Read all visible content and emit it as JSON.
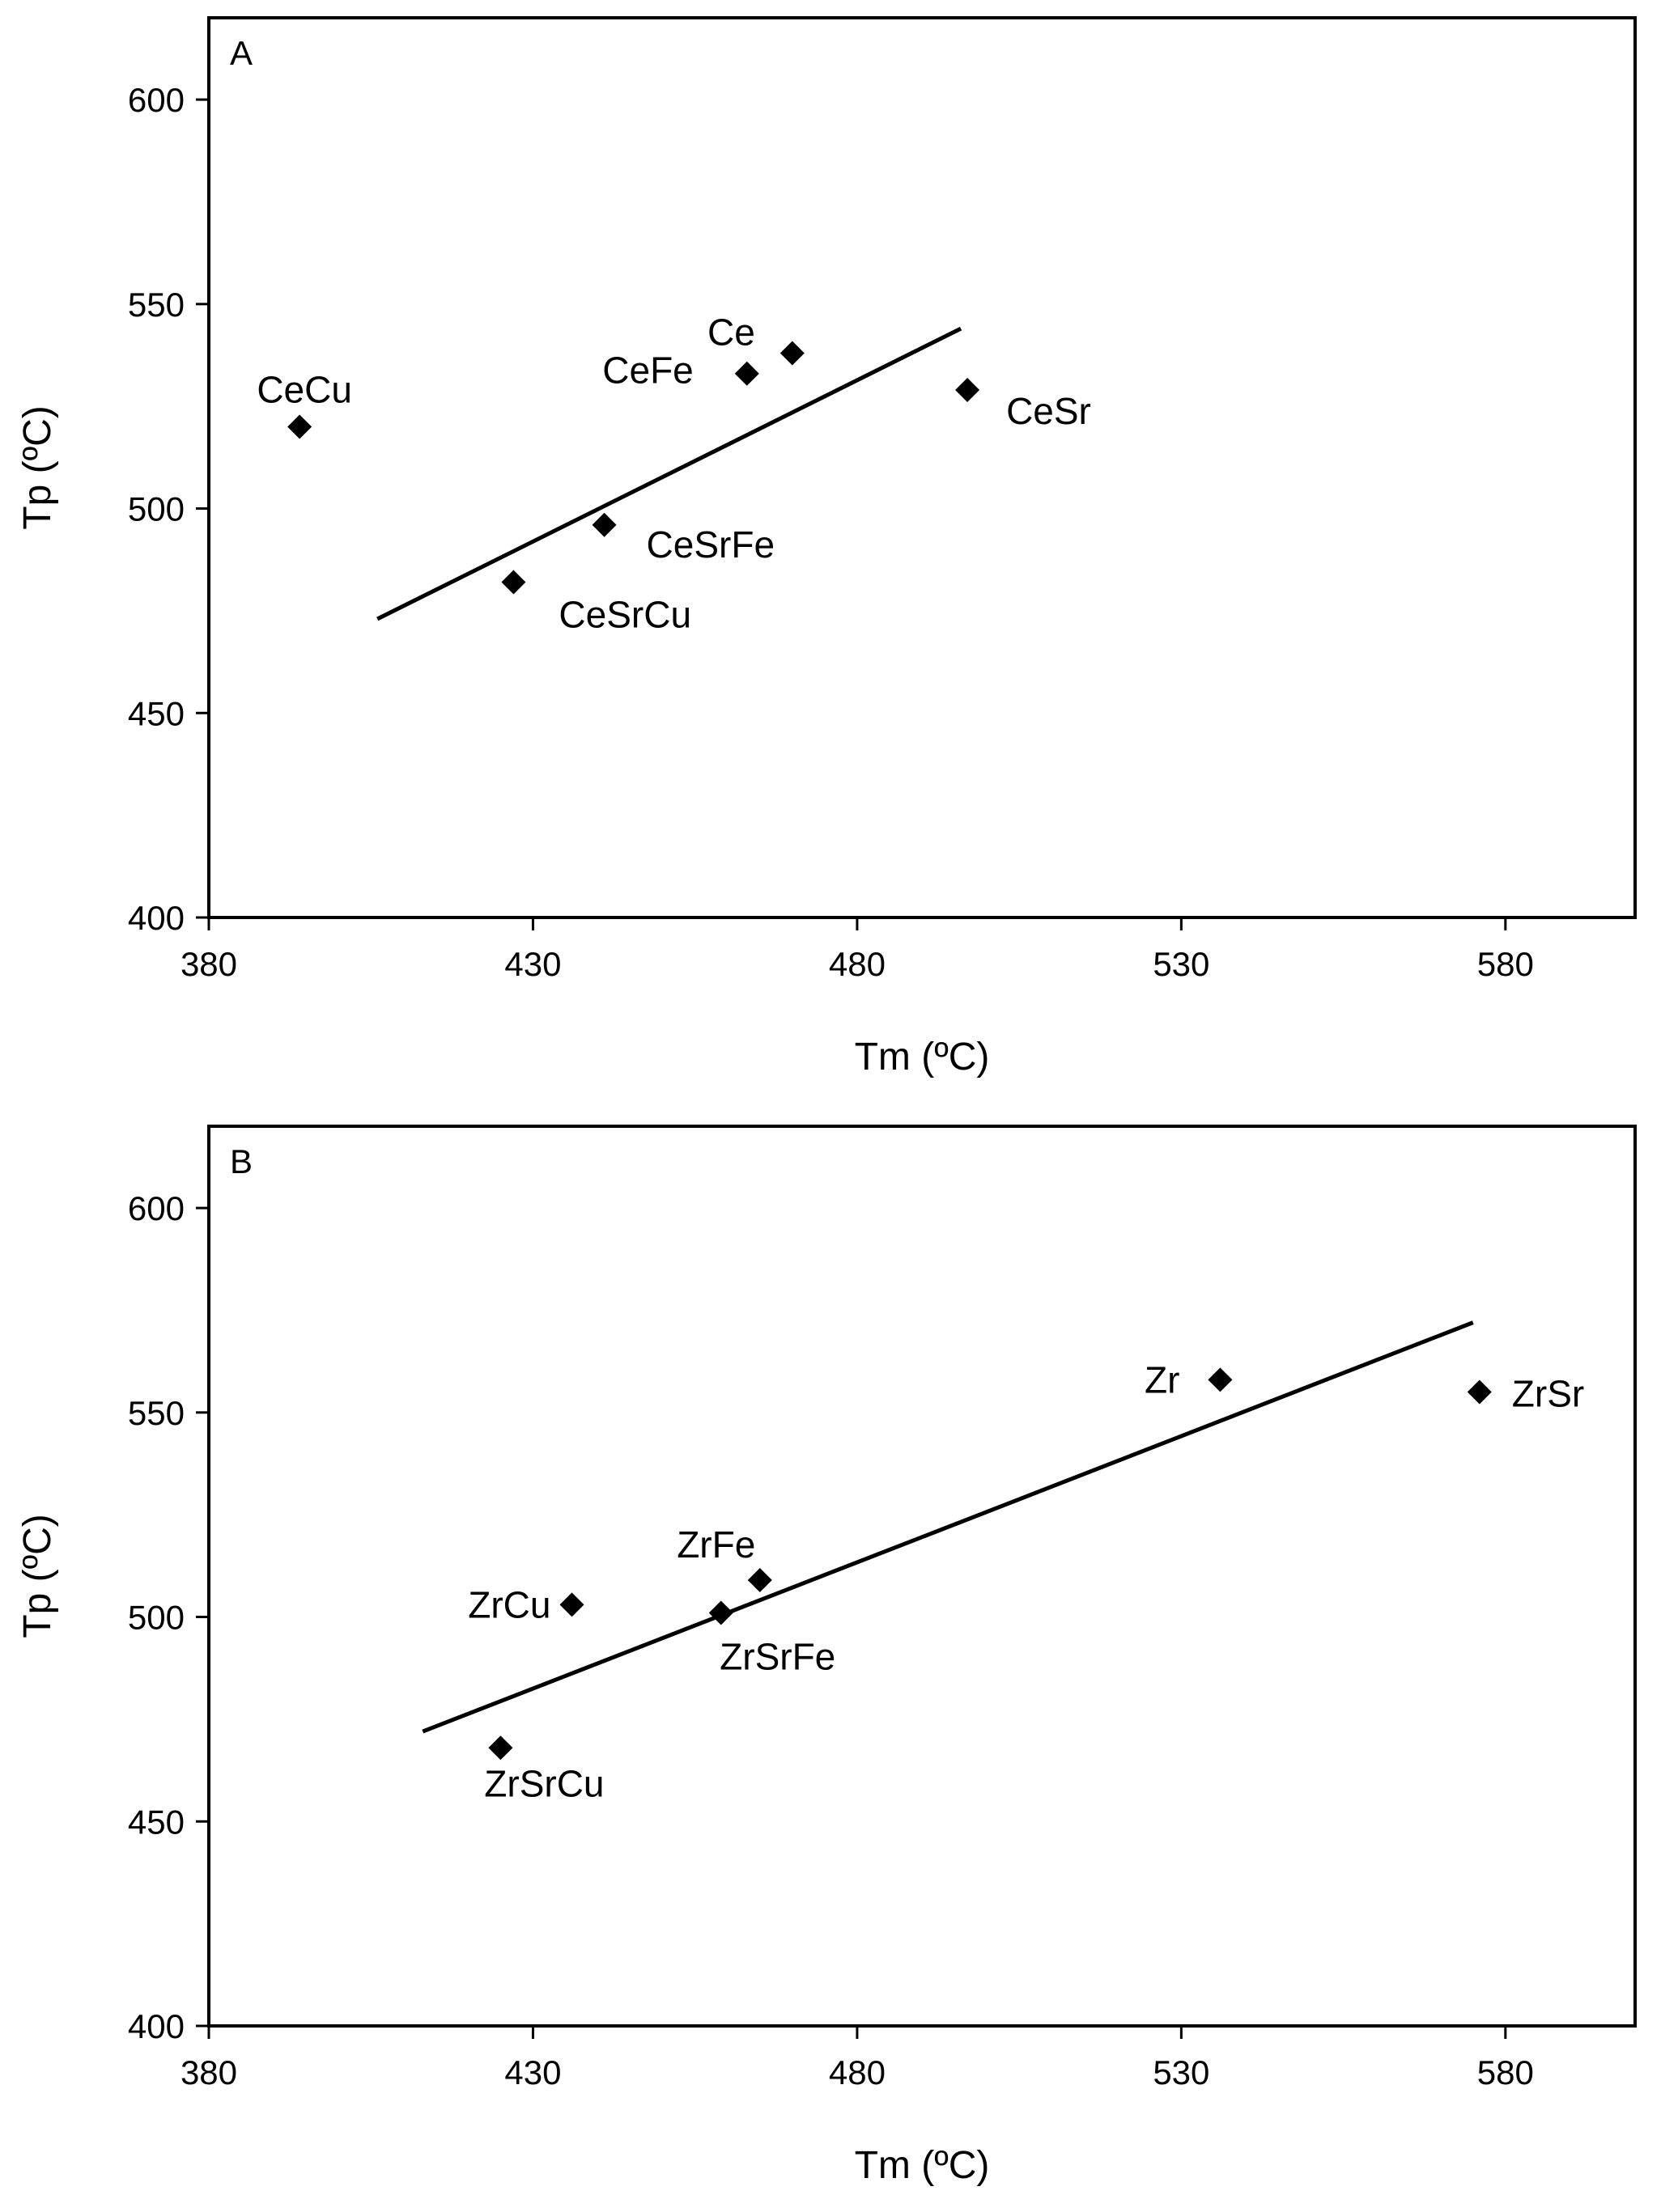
{
  "chart_data": [
    {
      "type": "scatter",
      "panel_label": "A",
      "xlabel": "Tm (ºC)",
      "ylabel": "Tp (ºC)",
      "xlim": [
        380,
        600
      ],
      "ylim": [
        400,
        620
      ],
      "xticks": [
        "380",
        "430",
        "480",
        "530",
        "580"
      ],
      "yticks": [
        "400",
        "450",
        "500",
        "550",
        "600"
      ],
      "points": [
        {
          "label": "CeCu",
          "x": 394,
          "y": 520
        },
        {
          "label": "CeFe",
          "x": 463,
          "y": 533
        },
        {
          "label": "Ce",
          "x": 470,
          "y": 538
        },
        {
          "label": "CeSr",
          "x": 497,
          "y": 529
        },
        {
          "label": "CeSrFe",
          "x": 441,
          "y": 496
        },
        {
          "label": "CeSrCu",
          "x": 427,
          "y": 482
        }
      ],
      "trendline": {
        "x": [
          406,
          496
        ],
        "y": [
          473,
          544
        ]
      }
    },
    {
      "type": "scatter",
      "panel_label": "B",
      "xlabel": "Tm (ºC)",
      "ylabel": "Tp (ºC)",
      "xlim": [
        380,
        600
      ],
      "ylim": [
        400,
        620
      ],
      "xticks": [
        "380",
        "430",
        "480",
        "530",
        "580"
      ],
      "yticks": [
        "400",
        "450",
        "500",
        "550",
        "600"
      ],
      "points": [
        {
          "label": "Zr",
          "x": 536,
          "y": 558
        },
        {
          "label": "ZrSr",
          "x": 576,
          "y": 555
        },
        {
          "label": "ZrFe",
          "x": 465,
          "y": 509
        },
        {
          "label": "ZrCu",
          "x": 436,
          "y": 503
        },
        {
          "label": "ZrSrFe",
          "x": 459,
          "y": 501
        },
        {
          "label": "ZrSrCu",
          "x": 425,
          "y": 468
        }
      ],
      "trendline": {
        "x": [
          413,
          575
        ],
        "y": [
          472,
          572
        ]
      }
    }
  ]
}
